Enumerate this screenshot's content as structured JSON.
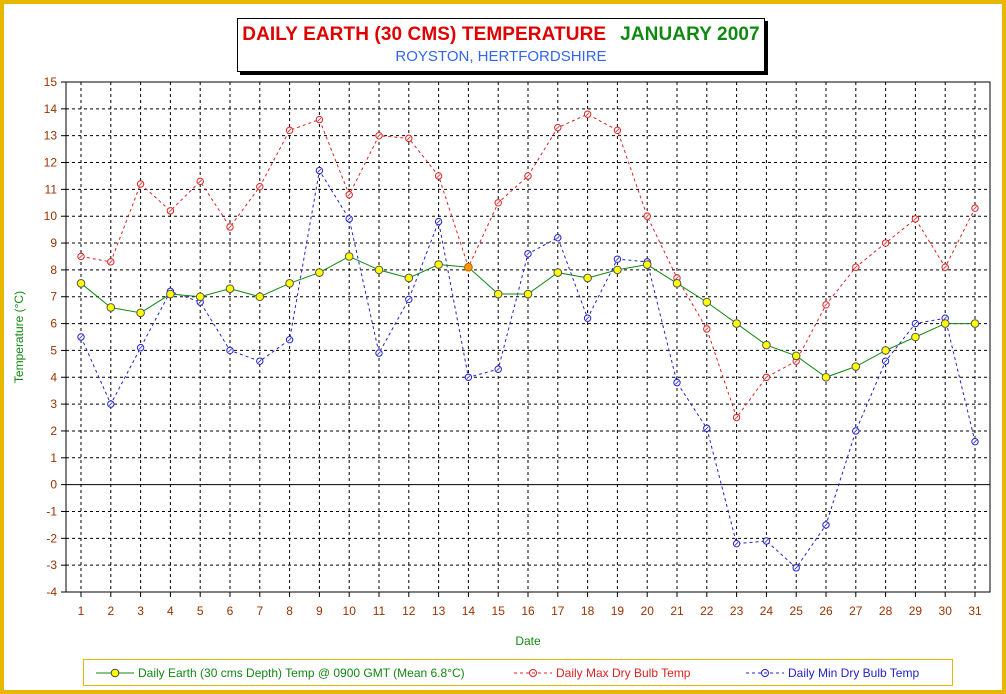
{
  "title": {
    "main": "DAILY EARTH (30 CMS) TEMPERATURE",
    "month": "JANUARY 2007",
    "subtitle": "ROYSTON, HERTFORDSHIRE"
  },
  "colors": {
    "frame": "#e8b800",
    "earth_line": "#118811",
    "earth_marker": "#ffff00",
    "max_line": "#dd2222",
    "min_line": "#2222cc",
    "axis_text": "#993300",
    "axis_label": "#118811",
    "highlight_marker": "#ff9900"
  },
  "chart_data": {
    "type": "line",
    "xlabel": "Date",
    "ylabel": "Temperature (°C)",
    "ylim": [
      -4,
      15
    ],
    "y_ticks": [
      -4,
      -3,
      -2,
      -1,
      0,
      1,
      2,
      3,
      4,
      5,
      6,
      7,
      8,
      9,
      10,
      11,
      12,
      13,
      14,
      15
    ],
    "grid": true,
    "legend_position": "bottom",
    "x": [
      1,
      2,
      3,
      4,
      5,
      6,
      7,
      8,
      9,
      10,
      11,
      12,
      13,
      14,
      15,
      16,
      17,
      18,
      19,
      20,
      21,
      22,
      23,
      24,
      25,
      26,
      27,
      28,
      29,
      30,
      31
    ],
    "series": [
      {
        "name": "Daily Earth (30 cms Depth) Temp @ 0900 GMT (Mean 6.8°C)",
        "style": "solid",
        "values": [
          7.5,
          6.6,
          6.4,
          7.1,
          7.0,
          7.3,
          7.0,
          7.5,
          7.9,
          8.5,
          8.0,
          7.7,
          8.2,
          8.1,
          7.1,
          7.1,
          7.9,
          7.7,
          8.0,
          8.2,
          7.5,
          6.8,
          6.0,
          5.2,
          4.8,
          4.0,
          4.4,
          5.0,
          5.5,
          6.0,
          6.0
        ]
      },
      {
        "name": "Daily Max Dry Bulb Temp",
        "style": "dashed",
        "values": [
          8.5,
          8.3,
          11.2,
          10.2,
          11.3,
          9.6,
          11.1,
          13.2,
          13.6,
          10.8,
          13.0,
          12.9,
          11.5,
          8.1,
          10.5,
          11.5,
          13.3,
          13.8,
          13.2,
          10.0,
          7.7,
          5.8,
          2.5,
          4.0,
          4.6,
          6.7,
          8.1,
          9.0,
          9.9,
          8.1,
          10.3
        ]
      },
      {
        "name": "Daily Min Dry Bulb Temp",
        "style": "dashed",
        "values": [
          5.5,
          3.0,
          5.1,
          7.2,
          6.8,
          5.0,
          4.6,
          5.4,
          11.7,
          9.9,
          4.9,
          6.9,
          9.8,
          4.0,
          4.3,
          8.6,
          9.2,
          6.2,
          8.4,
          8.3,
          3.8,
          2.1,
          -2.2,
          -2.1,
          -3.1,
          -1.5,
          2.0,
          4.6,
          6.0,
          6.2,
          1.6
        ]
      }
    ]
  }
}
